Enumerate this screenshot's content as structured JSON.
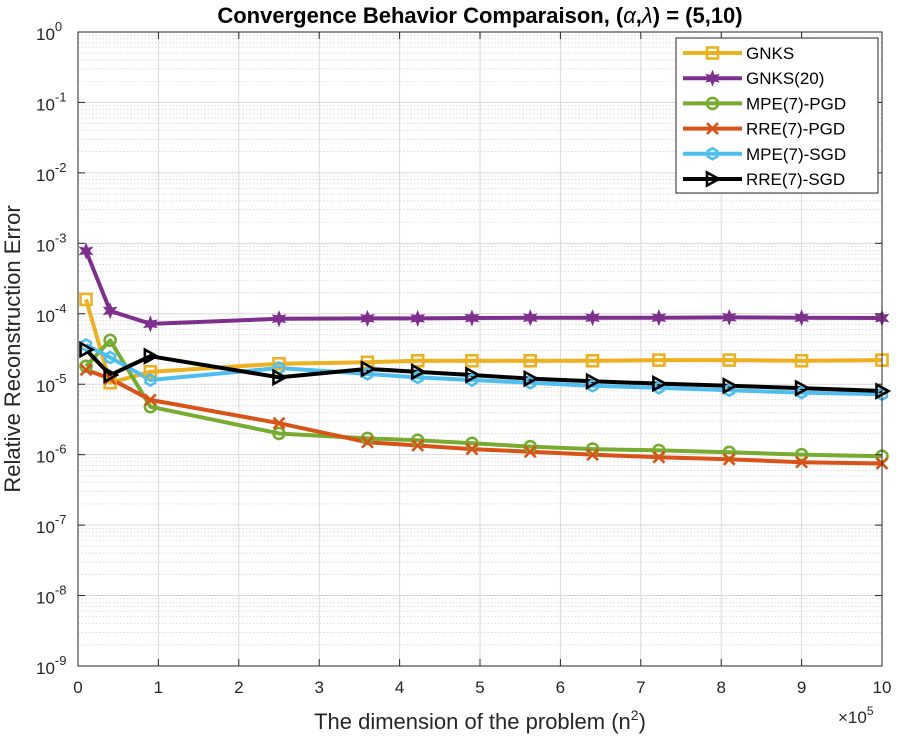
{
  "chart_data": {
    "type": "line",
    "title_prefix": "Convergence Behavior Comparaison, (",
    "title_alpha": "α",
    "title_sep": ",",
    "title_lambda": "λ",
    "title_suffix": ") = (5,10)",
    "xlabel": "The dimension of the problem (n",
    "xlabel_sup": "2",
    "xlabel_end": ")",
    "ylabel": "Relative Reconstruction Error",
    "x_multiplier_base": "×10",
    "x_multiplier_exp": "5",
    "xlim": [
      0,
      10
    ],
    "ylim_log10": [
      -9,
      0
    ],
    "yscale": "log",
    "grid": true,
    "legend_position": "top-right",
    "x_ticks": [
      0,
      1,
      2,
      3,
      4,
      5,
      6,
      7,
      8,
      9,
      10
    ],
    "y_ticks": [
      {
        "base": "10",
        "exp": "0",
        "value": 0
      },
      {
        "base": "10",
        "exp": "-1",
        "value": -1
      },
      {
        "base": "10",
        "exp": "-2",
        "value": -2
      },
      {
        "base": "10",
        "exp": "-3",
        "value": -3
      },
      {
        "base": "10",
        "exp": "-4",
        "value": -4
      },
      {
        "base": "10",
        "exp": "-5",
        "value": -5
      },
      {
        "base": "10",
        "exp": "-6",
        "value": -6
      },
      {
        "base": "10",
        "exp": "-7",
        "value": -7
      },
      {
        "base": "10",
        "exp": "-8",
        "value": -8
      },
      {
        "base": "10",
        "exp": "-9",
        "value": -9
      }
    ],
    "series": [
      {
        "name": "GNKS",
        "color": "#EDB120",
        "marker": "square",
        "x": [
          0.1,
          0.4,
          0.9,
          2.5,
          3.6,
          4.225,
          4.9,
          5.625,
          6.4,
          7.225,
          8.1,
          9.0,
          10.0
        ],
        "y": [
          0.00016,
          1.05e-05,
          1.5e-05,
          1.95e-05,
          2.05e-05,
          2.15e-05,
          2.15e-05,
          2.15e-05,
          2.15e-05,
          2.2e-05,
          2.2e-05,
          2.15e-05,
          2.2e-05
        ]
      },
      {
        "name": "GNKS(20)",
        "color": "#7E2F8E",
        "marker": "hexagram",
        "x": [
          0.1,
          0.4,
          0.9,
          2.5,
          3.6,
          4.225,
          4.9,
          5.625,
          6.4,
          7.225,
          8.1,
          9.0,
          10.0
        ],
        "y": [
          0.00078,
          0.00011,
          7.2e-05,
          8.5e-05,
          8.6e-05,
          8.6e-05,
          8.7e-05,
          8.8e-05,
          8.8e-05,
          8.8e-05,
          8.9e-05,
          8.8e-05,
          8.7e-05
        ]
      },
      {
        "name": "MPE(7)-PGD",
        "color": "#77AC30",
        "marker": "circle",
        "x": [
          0.1,
          0.4,
          0.9,
          2.5,
          3.6,
          4.225,
          4.9,
          5.625,
          6.4,
          7.225,
          8.1,
          9.0,
          10.0
        ],
        "y": [
          1.8e-05,
          4.2e-05,
          4.8e-06,
          2e-06,
          1.7e-06,
          1.6e-06,
          1.45e-06,
          1.3e-06,
          1.2e-06,
          1.15e-06,
          1.08e-06,
          1e-06,
          9.5e-07
        ]
      },
      {
        "name": "RRE(7)-PGD",
        "color": "#D95319",
        "marker": "x",
        "x": [
          0.1,
          0.4,
          0.9,
          2.5,
          3.6,
          4.225,
          4.9,
          5.625,
          6.4,
          7.225,
          8.1,
          9.0,
          10.0
        ],
        "y": [
          1.6e-05,
          1.2e-05,
          6e-06,
          2.8e-06,
          1.5e-06,
          1.35e-06,
          1.2e-06,
          1.1e-06,
          1e-06,
          9.2e-07,
          8.6e-07,
          7.8e-07,
          7.5e-07
        ]
      },
      {
        "name": "MPE(7)-SGD",
        "color": "#4DBEEE",
        "marker": "hexagon",
        "x": [
          0.1,
          0.4,
          0.9,
          2.5,
          3.6,
          4.225,
          4.9,
          5.625,
          6.4,
          7.225,
          8.1,
          9.0,
          10.0
        ],
        "y": [
          3.6e-05,
          2.4e-05,
          1.15e-05,
          1.7e-05,
          1.4e-05,
          1.25e-05,
          1.15e-05,
          1.05e-05,
          9.5e-06,
          8.9e-06,
          8.2e-06,
          7.6e-06,
          7.2e-06
        ]
      },
      {
        "name": "RRE(7)-SGD",
        "color": "#000000",
        "marker": "triangle-right",
        "x": [
          0.1,
          0.4,
          0.9,
          2.5,
          3.6,
          4.225,
          4.9,
          5.625,
          6.4,
          7.225,
          8.1,
          9.0,
          10.0
        ],
        "y": [
          3.1e-05,
          1.35e-05,
          2.5e-05,
          1.25e-05,
          1.65e-05,
          1.5e-05,
          1.35e-05,
          1.2e-05,
          1.1e-05,
          1.02e-05,
          9.5e-06,
          8.8e-06,
          8e-06
        ]
      }
    ]
  }
}
